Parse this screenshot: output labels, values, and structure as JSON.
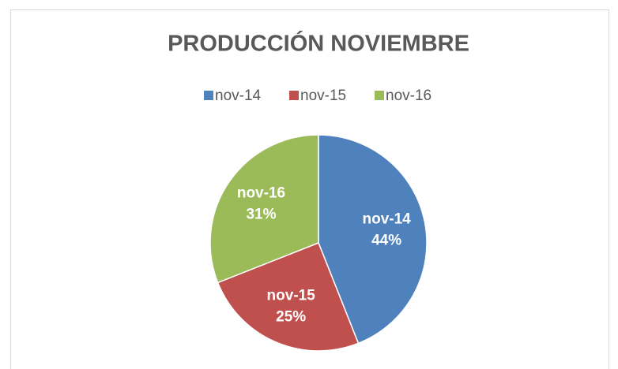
{
  "chart_data": {
    "type": "pie",
    "title": "PRODUCCIÓN NOVIEMBRE",
    "categories": [
      "nov-14",
      "nov-15",
      "nov-16"
    ],
    "values": [
      44,
      25,
      31
    ],
    "value_labels": [
      "44%",
      "25%",
      "31%"
    ],
    "colors": [
      "#4f81bd",
      "#c0504d",
      "#9bbb59"
    ],
    "legend": "top"
  }
}
